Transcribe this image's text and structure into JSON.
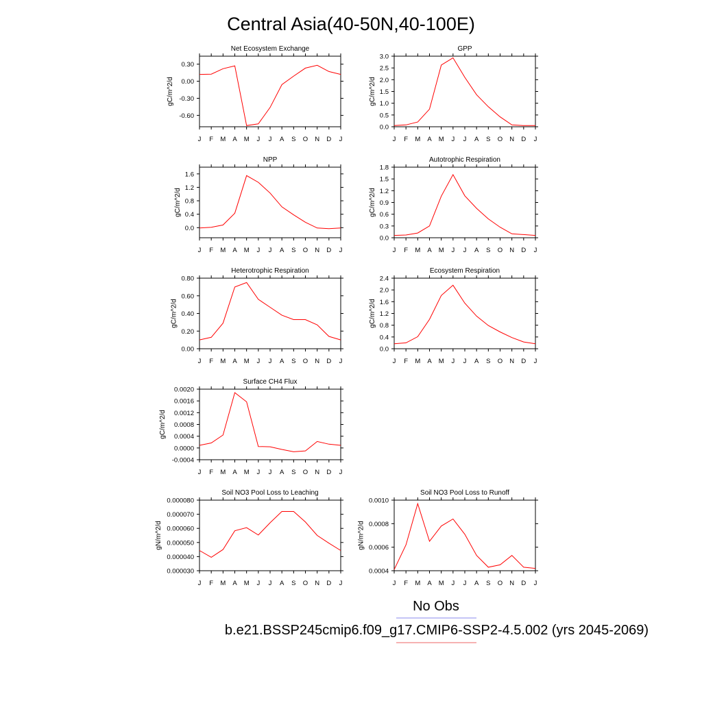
{
  "title": "Central Asia(40-50N,40-100E)",
  "months": [
    "J",
    "F",
    "M",
    "A",
    "M",
    "J",
    "J",
    "A",
    "S",
    "O",
    "N",
    "D",
    "J"
  ],
  "legend": {
    "obs_label": "No Obs",
    "case_label": "b.e21.BSSP245cmip6.f09_g17.CMIP6-SSP2-4.5.002 (yrs 2045-2069)",
    "obs_color": "#8888ee",
    "case_color": "#ee6666"
  },
  "line_color": "#ff0000",
  "chart_data": [
    {
      "type": "line",
      "title": "Net Ecosystem Exchange",
      "ylabel": "gC/m^2/d",
      "ylim": [
        -0.8,
        0.44
      ],
      "yticks": [
        "0.30",
        "0.00",
        "-0.30",
        "-0.60"
      ],
      "ytick_values": [
        0.3,
        0.0,
        -0.3,
        -0.6
      ],
      "x": [
        "J",
        "F",
        "M",
        "A",
        "M",
        "J",
        "J",
        "A",
        "S",
        "O",
        "N",
        "D",
        "J"
      ],
      "series": [
        {
          "values": [
            0.12,
            0.125,
            0.22,
            0.27,
            -0.78,
            -0.75,
            -0.46,
            -0.06,
            0.09,
            0.23,
            0.28,
            0.17,
            0.12
          ]
        }
      ]
    },
    {
      "type": "line",
      "title": "GPP",
      "ylabel": "gC/m^2/d",
      "ylim": [
        0.0,
        3.0
      ],
      "yticks": [
        "3.0",
        "2.5",
        "2.0",
        "1.5",
        "1.0",
        "0.5",
        "0.0"
      ],
      "ytick_values": [
        3.0,
        2.5,
        2.0,
        1.5,
        1.0,
        0.5,
        0.0
      ],
      "x": [
        "J",
        "F",
        "M",
        "A",
        "M",
        "J",
        "J",
        "A",
        "S",
        "O",
        "N",
        "D",
        "J"
      ],
      "series": [
        {
          "values": [
            0.05,
            0.08,
            0.2,
            0.75,
            2.62,
            2.93,
            2.1,
            1.36,
            0.85,
            0.42,
            0.08,
            0.05,
            0.05
          ]
        }
      ]
    },
    {
      "type": "line",
      "title": "NPP",
      "ylabel": "gC/m^2/d",
      "ylim": [
        -0.3,
        1.8
      ],
      "yticks": [
        "1.6",
        "1.2",
        "0.8",
        "0.4",
        "0.0"
      ],
      "ytick_values": [
        1.6,
        1.2,
        0.8,
        0.4,
        0.0
      ],
      "x": [
        "J",
        "F",
        "M",
        "A",
        "M",
        "J",
        "J",
        "A",
        "S",
        "O",
        "N",
        "D",
        "J"
      ],
      "series": [
        {
          "values": [
            -0.01,
            0.01,
            0.08,
            0.43,
            1.55,
            1.35,
            1.03,
            0.62,
            0.38,
            0.16,
            -0.01,
            -0.03,
            -0.01
          ]
        }
      ]
    },
    {
      "type": "line",
      "title": "Autotrophic Respiration",
      "ylabel": "gC/m^2/d",
      "ylim": [
        0.0,
        1.8
      ],
      "yticks": [
        "1.8",
        "1.5",
        "1.2",
        "0.9",
        "0.6",
        "0.3",
        "0.0"
      ],
      "ytick_values": [
        1.8,
        1.5,
        1.2,
        0.9,
        0.6,
        0.3,
        0.0
      ],
      "x": [
        "J",
        "F",
        "M",
        "A",
        "M",
        "J",
        "J",
        "A",
        "S",
        "O",
        "N",
        "D",
        "J"
      ],
      "series": [
        {
          "values": [
            0.06,
            0.07,
            0.12,
            0.3,
            1.06,
            1.61,
            1.07,
            0.75,
            0.48,
            0.27,
            0.1,
            0.08,
            0.06
          ]
        }
      ]
    },
    {
      "type": "line",
      "title": "Heterotrophic Respiration",
      "ylabel": "gC/m^2/d",
      "ylim": [
        0.0,
        0.8
      ],
      "yticks": [
        "0.80",
        "0.60",
        "0.40",
        "0.20",
        "0.00"
      ],
      "ytick_values": [
        0.8,
        0.6,
        0.4,
        0.2,
        0.0
      ],
      "x": [
        "J",
        "F",
        "M",
        "A",
        "M",
        "J",
        "J",
        "A",
        "S",
        "O",
        "N",
        "D",
        "J"
      ],
      "series": [
        {
          "values": [
            0.1,
            0.13,
            0.29,
            0.7,
            0.75,
            0.56,
            0.47,
            0.38,
            0.33,
            0.33,
            0.27,
            0.14,
            0.1
          ]
        }
      ]
    },
    {
      "type": "line",
      "title": "Ecosystem Respiration",
      "ylabel": "gC/m^2/d",
      "ylim": [
        0.0,
        2.4
      ],
      "yticks": [
        "2.4",
        "2.0",
        "1.6",
        "1.2",
        "0.8",
        "0.4",
        "0.0"
      ],
      "ytick_values": [
        2.4,
        2.0,
        1.6,
        1.2,
        0.8,
        0.4,
        0.0
      ],
      "x": [
        "J",
        "F",
        "M",
        "A",
        "M",
        "J",
        "J",
        "A",
        "S",
        "O",
        "N",
        "D",
        "J"
      ],
      "series": [
        {
          "values": [
            0.17,
            0.2,
            0.41,
            1.0,
            1.81,
            2.16,
            1.55,
            1.11,
            0.79,
            0.57,
            0.38,
            0.23,
            0.17
          ]
        }
      ]
    },
    {
      "type": "line",
      "title": "Surface CH4 Flux",
      "ylabel": "gC/m^2/d",
      "ylim": [
        -0.0004,
        0.002
      ],
      "yticks": [
        "0.0020",
        "0.0016",
        "0.0012",
        "0.0008",
        "0.0004",
        "0.0000",
        "-0.0004"
      ],
      "ytick_values": [
        0.002,
        0.0016,
        0.0012,
        0.0008,
        0.0004,
        0.0,
        -0.0004
      ],
      "x": [
        "J",
        "F",
        "M",
        "A",
        "M",
        "J",
        "J",
        "A",
        "S",
        "O",
        "N",
        "D",
        "J"
      ],
      "series": [
        {
          "values": [
            9e-05,
            0.00017,
            0.00044,
            0.00188,
            0.00157,
            5e-05,
            4e-05,
            -5e-05,
            -0.00013,
            -0.0001,
            0.00022,
            0.00013,
            9e-05
          ]
        }
      ]
    },
    {
      "type": "line",
      "title": "Soil NO3 Pool Loss to Leaching",
      "ylabel": "gN/m^2/d",
      "ylim": [
        3e-05,
        8e-05
      ],
      "yticks": [
        "0.000080",
        "0.000070",
        "0.000060",
        "0.000050",
        "0.000040",
        "0.000030"
      ],
      "ytick_values": [
        8e-05,
        7e-05,
        6e-05,
        5e-05,
        4e-05,
        3e-05
      ],
      "x": [
        "J",
        "F",
        "M",
        "A",
        "M",
        "J",
        "J",
        "A",
        "S",
        "O",
        "N",
        "D",
        "J"
      ],
      "series": [
        {
          "values": [
            4.43e-05,
            3.95e-05,
            4.5e-05,
            5.83e-05,
            6.05e-05,
            5.53e-05,
            6.4e-05,
            7.2e-05,
            7.2e-05,
            6.45e-05,
            5.5e-05,
            4.95e-05,
            4.43e-05
          ]
        }
      ]
    },
    {
      "type": "line",
      "title": "Soil NO3 Pool Loss to Runoff",
      "ylabel": "gN/m^2/d",
      "ylim": [
        0.0004,
        0.001
      ],
      "yticks": [
        "0.0010",
        "0.0008",
        "0.0006",
        "0.0004"
      ],
      "ytick_values": [
        0.001,
        0.0008,
        0.0006,
        0.0004
      ],
      "x": [
        "J",
        "F",
        "M",
        "A",
        "M",
        "J",
        "J",
        "A",
        "S",
        "O",
        "N",
        "D",
        "J"
      ],
      "series": [
        {
          "values": [
            0.00041,
            0.00062,
            0.00097,
            0.00065,
            0.00078,
            0.00084,
            0.00071,
            0.00053,
            0.00043,
            0.00045,
            0.00053,
            0.00043,
            0.00042
          ]
        }
      ]
    }
  ]
}
